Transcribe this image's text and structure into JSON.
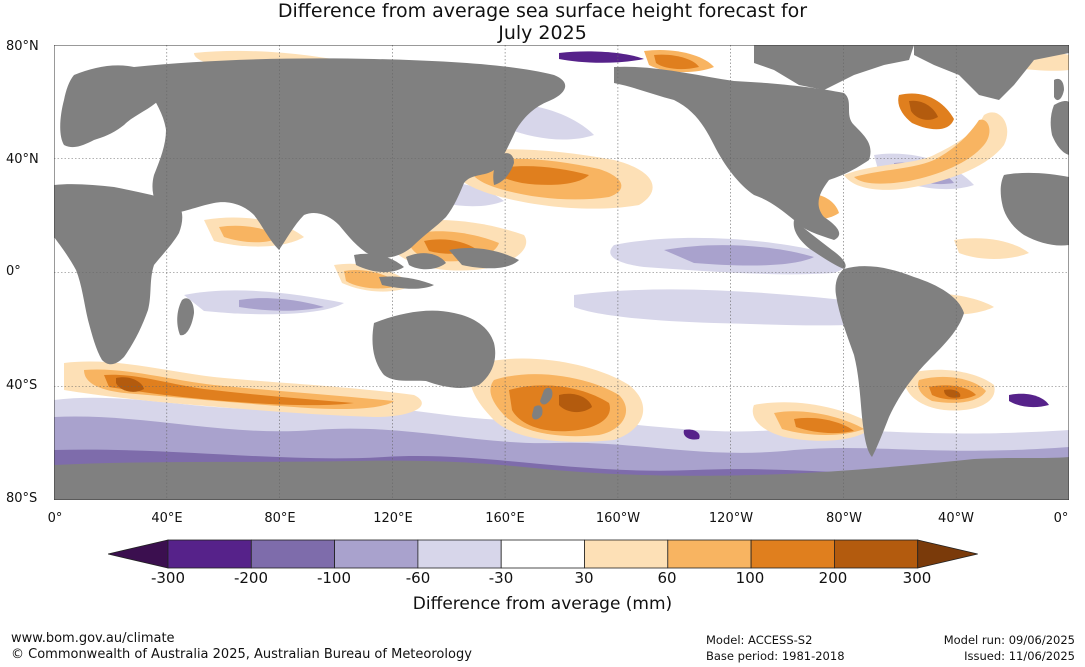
{
  "title_line1": "Difference from average sea surface height forecast for",
  "title_line2": "July 2025",
  "lat_labels": [
    "80°N",
    "40°N",
    "0°",
    "40°S",
    "80°S"
  ],
  "lon_labels": [
    "0°",
    "40°E",
    "80°E",
    "120°E",
    "160°E",
    "160°W",
    "120°W",
    "80°W",
    "40°W",
    "0°"
  ],
  "colorbar": {
    "ticks": [
      "-300",
      "-200",
      "-100",
      "-60",
      "-30",
      "30",
      "60",
      "100",
      "200",
      "300"
    ],
    "colors": [
      "#3b0f4f",
      "#56228a",
      "#7e6cab",
      "#a9a2cd",
      "#d7d6ea",
      "#ffffff",
      "#fde0b6",
      "#f8b461",
      "#e07f1e",
      "#b35b0e",
      "#7a3a0a"
    ],
    "label": "Difference from average (mm)"
  },
  "map_colors": {
    "land": "#808080",
    "ocean": "#ffffff"
  },
  "footer": {
    "url": "www.bom.gov.au/climate",
    "copyright": "© Commonwealth of Australia 2025, Australian Bureau of Meteorology",
    "model": "Model: ACCESS-S2",
    "base_period": "Base period: 1981-2018",
    "model_run": "Model run: 09/06/2025",
    "issued": "Issued: 11/06/2025"
  }
}
